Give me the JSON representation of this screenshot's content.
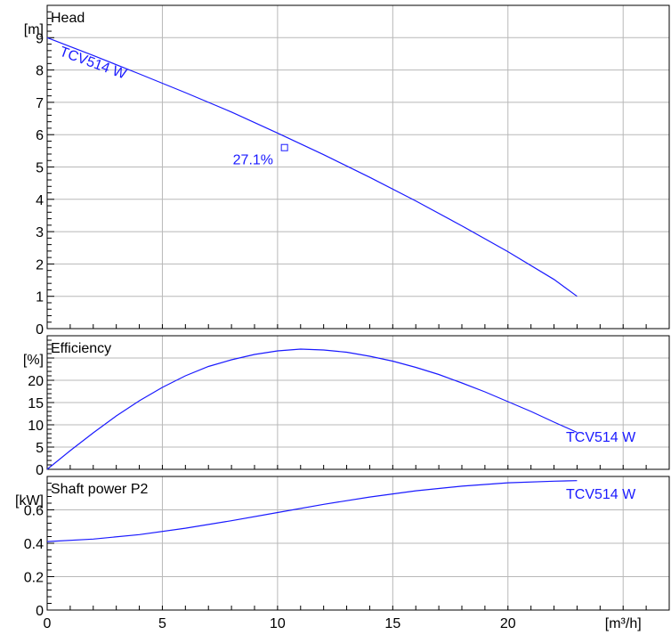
{
  "chart_data": [
    {
      "type": "line",
      "title": "Head",
      "unit_label": "[m]",
      "ylim": [
        0,
        10
      ],
      "yticks": [
        "0",
        "1",
        "2",
        "3",
        "4",
        "5",
        "6",
        "7",
        "8",
        "9"
      ],
      "series": [
        {
          "name": "TCV514 W",
          "points": [
            [
              0,
              9.0
            ],
            [
              2,
              8.45
            ],
            [
              4,
              7.88
            ],
            [
              6,
              7.3
            ],
            [
              8,
              6.7
            ],
            [
              10,
              6.05
            ],
            [
              12,
              5.38
            ],
            [
              14,
              4.68
            ],
            [
              16,
              3.95
            ],
            [
              18,
              3.18
            ],
            [
              20,
              2.38
            ],
            [
              22,
              1.52
            ],
            [
              23,
              1.0
            ]
          ]
        }
      ],
      "operating_point": {
        "x": 10.3,
        "y": 5.6,
        "label": "27.1%"
      }
    },
    {
      "type": "line",
      "title": "Efficiency",
      "unit_label": "[%]",
      "ylim": [
        0,
        30
      ],
      "yticks": [
        "0",
        "5",
        "10",
        "15",
        "20"
      ],
      "series": [
        {
          "name": "TCV514 W",
          "points": [
            [
              0,
              0
            ],
            [
              1,
              4.2
            ],
            [
              2,
              8.2
            ],
            [
              3,
              12.0
            ],
            [
              4,
              15.4
            ],
            [
              5,
              18.4
            ],
            [
              6,
              21.0
            ],
            [
              7,
              23.1
            ],
            [
              8,
              24.6
            ],
            [
              9,
              25.8
            ],
            [
              10,
              26.6
            ],
            [
              11,
              27.0
            ],
            [
              12,
              26.8
            ],
            [
              13,
              26.3
            ],
            [
              14,
              25.4
            ],
            [
              15,
              24.3
            ],
            [
              16,
              22.9
            ],
            [
              17,
              21.3
            ],
            [
              18,
              19.4
            ],
            [
              19,
              17.4
            ],
            [
              20,
              15.2
            ],
            [
              21,
              13.0
            ],
            [
              22,
              10.6
            ],
            [
              23,
              8.3
            ]
          ]
        }
      ]
    },
    {
      "type": "line",
      "title": "Shaft power P2",
      "unit_label": "[kW]",
      "ylim": [
        0,
        0.8
      ],
      "yticks": [
        "0",
        "0.2",
        "0.4",
        "0.6"
      ],
      "series": [
        {
          "name": "TCV514 W",
          "points": [
            [
              0,
              0.41
            ],
            [
              2,
              0.425
            ],
            [
              4,
              0.452
            ],
            [
              6,
              0.49
            ],
            [
              8,
              0.535
            ],
            [
              10,
              0.584
            ],
            [
              12,
              0.633
            ],
            [
              14,
              0.677
            ],
            [
              16,
              0.714
            ],
            [
              18,
              0.742
            ],
            [
              20,
              0.762
            ],
            [
              22,
              0.772
            ],
            [
              23,
              0.775
            ]
          ]
        }
      ]
    }
  ],
  "x_axis": {
    "xlim": [
      0,
      27
    ],
    "ticks": [
      "0",
      "5",
      "10",
      "15",
      "20"
    ],
    "unit_label": "[m³/h]"
  },
  "colors": {
    "series": "#1a1aff",
    "grid": "#b8b8b8",
    "frame": "#000000"
  }
}
